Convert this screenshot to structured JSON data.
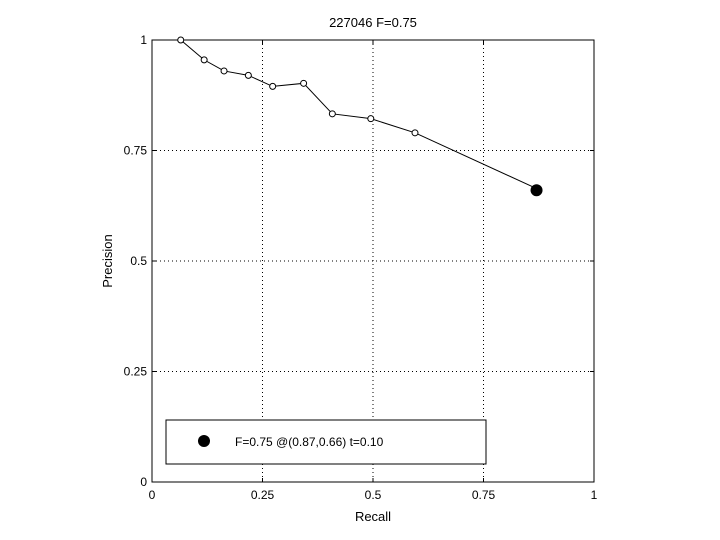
{
  "chart_data": {
    "type": "line",
    "title": "227046 F=0.75",
    "xlabel": "Recall",
    "ylabel": "Precision",
    "xlim": [
      0,
      1
    ],
    "ylim": [
      0,
      1
    ],
    "xticks": [
      0,
      0.25,
      0.5,
      0.75,
      1
    ],
    "yticks": [
      0,
      0.25,
      0.5,
      0.75,
      1
    ],
    "xtick_labels": [
      "0",
      "0.25",
      "0.5",
      "0.75",
      "1"
    ],
    "ytick_labels": [
      "0",
      "0.25",
      "0.5",
      "0.75",
      "1"
    ],
    "grid": true,
    "legend_position": "bottom-left",
    "series": [
      {
        "name": "",
        "x": [
          0.065,
          0.118,
          0.163,
          0.218,
          0.273,
          0.343,
          0.408,
          0.495,
          0.595,
          0.872
        ],
        "y": [
          1.0,
          0.955,
          0.93,
          0.92,
          0.895,
          0.902,
          0.833,
          0.822,
          0.79,
          0.663
        ]
      }
    ],
    "highlight_point": {
      "x": 0.87,
      "y": 0.66
    },
    "legend_entry": "F=0.75 @(0.87,0.66) t=0.10",
    "colors": {
      "line": "#000000",
      "marker": "#000000"
    }
  }
}
